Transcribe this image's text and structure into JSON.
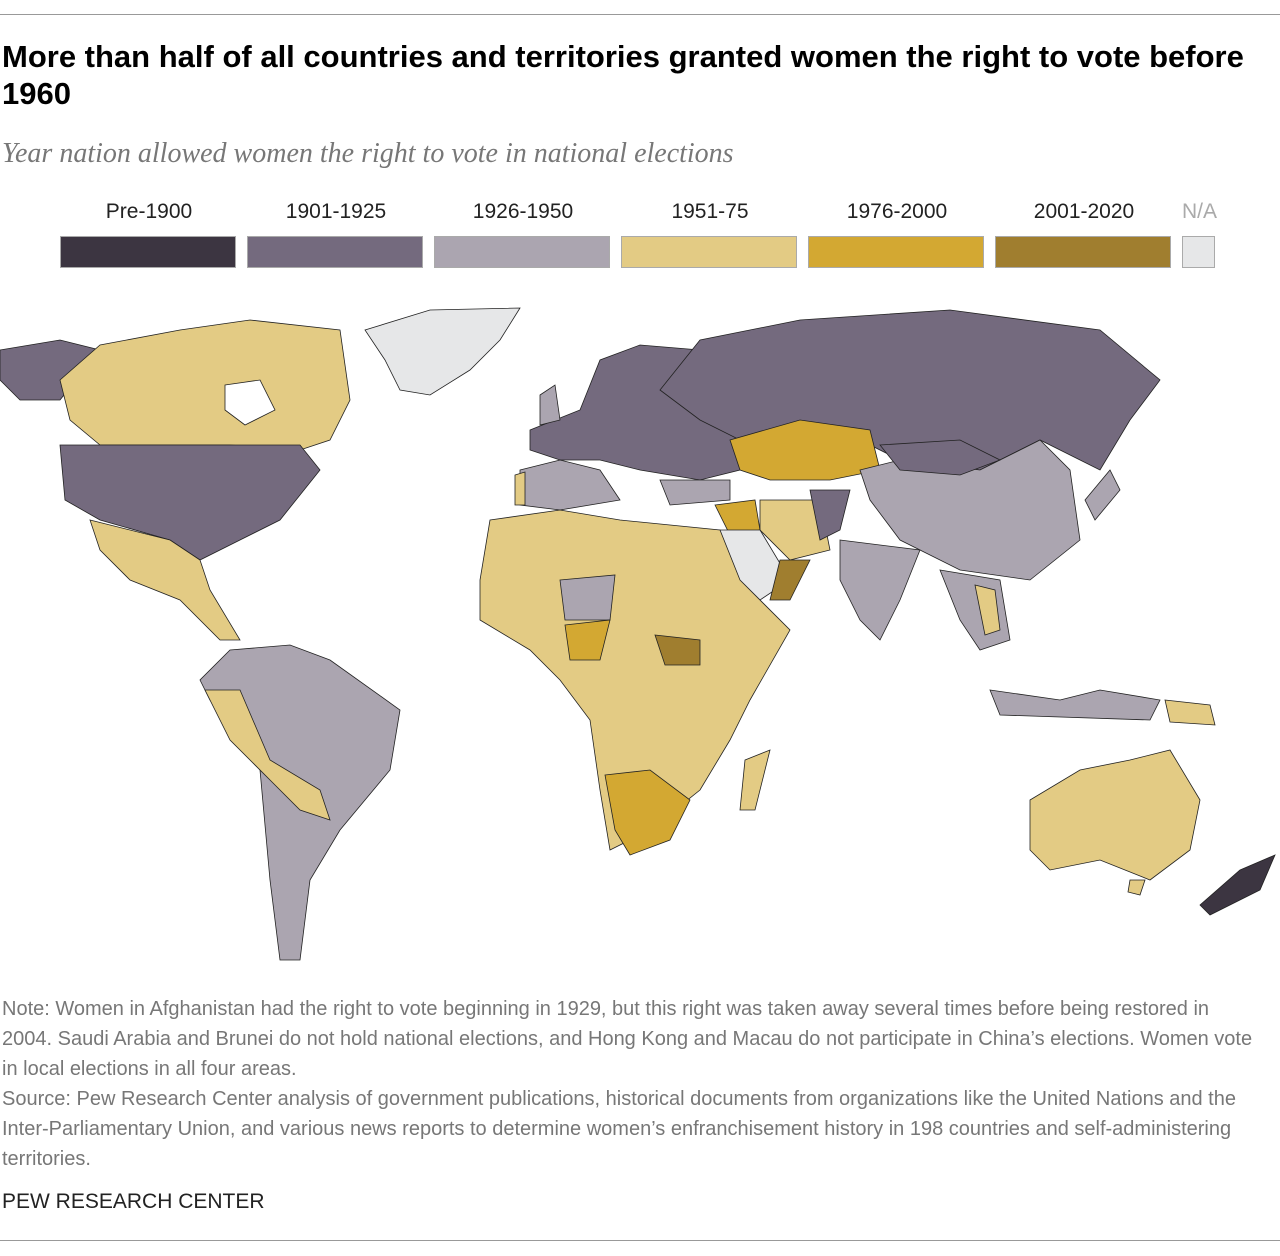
{
  "title": "More than half of all countries and territories granted women the right to vote before 1960",
  "subtitle": "Year nation allowed women the right to vote in national elections",
  "legend": [
    {
      "label": "Pre-1900",
      "color": "#3c3541"
    },
    {
      "label": "1901-1925",
      "color": "#746a7e"
    },
    {
      "label": "1926-1950",
      "color": "#aba5b0"
    },
    {
      "label": "1951-75",
      "color": "#e3cb84"
    },
    {
      "label": "1976-2000",
      "color": "#d3a832"
    },
    {
      "label": "2001-2020",
      "color": "#a07e2f"
    },
    {
      "label": "N/A",
      "color": "#e6e7e8"
    }
  ],
  "note": "Note: Women in Afghanistan had the right to vote beginning in 1929, but this right was taken away several times before being restored in 2004. Saudi Arabia and Brunei do not hold national elections, and Hong Kong and Macau do not participate in China’s elections. Women vote in local elections in all four areas.",
  "source": "Source: Pew Research Center analysis of government publications, historical documents from organizations like the United Nations and the Inter-Parliamentary Union, and various news reports to determine women’s enfranchisement history in 198 countries and self-administering territories.",
  "brand": "PEW RESEARCH CENTER"
}
